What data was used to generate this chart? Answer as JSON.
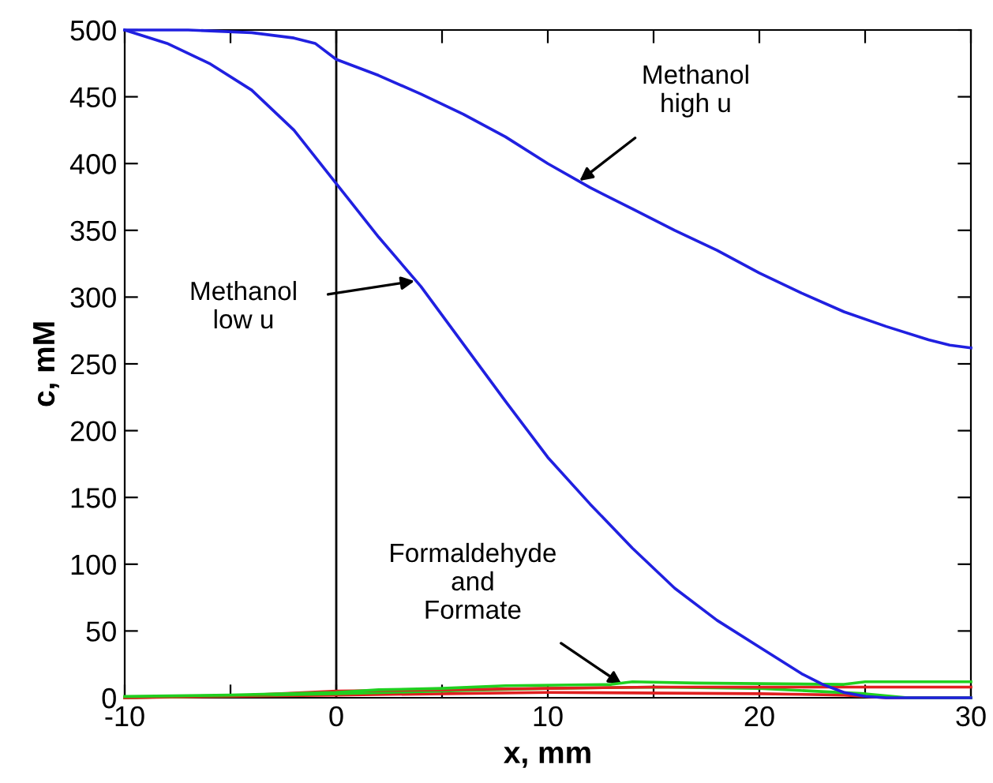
{
  "chart_data": {
    "type": "line",
    "xlabel": "x, mm",
    "ylabel": "c, mM",
    "x": [
      -10,
      -8,
      -6,
      -4,
      -2,
      0,
      2,
      4,
      6,
      8,
      10,
      12,
      14,
      16,
      18,
      20,
      22,
      23,
      24,
      25,
      26,
      30
    ],
    "series": [
      {
        "color": "#2020e0",
        "values": [
          500,
          490,
          475,
          455,
          425,
          385,
          345,
          308,
          265,
          222,
          180,
          145,
          112,
          82,
          58,
          38,
          18,
          10,
          4,
          1,
          0,
          0
        ]
      },
      {
        "color": "#2020e0",
        "x": [
          -10,
          -7,
          -4,
          -2,
          -1,
          0,
          2,
          4,
          6,
          8,
          10,
          12,
          14,
          16,
          18,
          20,
          22,
          24,
          26,
          28,
          29,
          30
        ],
        "values": [
          500,
          500,
          498,
          494,
          490,
          478,
          466,
          452,
          437,
          420,
          400,
          382,
          366,
          350,
          335,
          318,
          303,
          289,
          278,
          268,
          264,
          262
        ]
      },
      {
        "color": "#20d020",
        "x": [
          -10,
          -5,
          0,
          2,
          5,
          8,
          13,
          14,
          17,
          24,
          25,
          30
        ],
        "values": [
          1,
          2,
          4,
          6,
          7,
          9,
          10,
          12,
          11,
          10,
          12,
          12
        ]
      },
      {
        "color": "#e02020",
        "x": [
          -10,
          -4,
          0,
          5,
          10,
          15,
          20,
          30
        ],
        "values": [
          0,
          2,
          5,
          6,
          7,
          8,
          8,
          8
        ]
      },
      {
        "color": "#20d020",
        "x": [
          -10,
          0,
          5,
          10,
          15,
          20,
          25,
          27,
          30
        ],
        "values": [
          0,
          3,
          5,
          7,
          8,
          7,
          3,
          0,
          0
        ]
      },
      {
        "color": "#e02020",
        "x": [
          -10,
          0,
          10,
          20,
          24,
          26,
          30
        ],
        "values": [
          0,
          2,
          4,
          3,
          2,
          0,
          0
        ]
      }
    ],
    "xlim": [
      -10,
      30
    ],
    "ylim": [
      0,
      500
    ],
    "xticks": [
      -10,
      {
        "value": -5,
        "label": null
      },
      0,
      {
        "value": 5,
        "label": null
      },
      10,
      {
        "value": 15,
        "label": null
      },
      20,
      {
        "value": 25,
        "label": null
      },
      30
    ],
    "yticks": [
      0,
      50,
      100,
      150,
      200,
      250,
      300,
      350,
      400,
      450,
      500
    ],
    "ref_lines": [
      {
        "axis": "x",
        "value": 0,
        "color": "#000000"
      }
    ],
    "annotations": [
      {
        "text": "Methanol\nhigh u",
        "x": 11.5,
        "y": 387
      },
      {
        "text": "Methanol\nlow u",
        "x": 3.7,
        "y": 312
      },
      {
        "text": "Formaldehyde\nand\nFormate",
        "x": 13.5,
        "y": 10
      }
    ],
    "grid": false,
    "legend": false,
    "marker": "none",
    "line_style": "solid"
  }
}
